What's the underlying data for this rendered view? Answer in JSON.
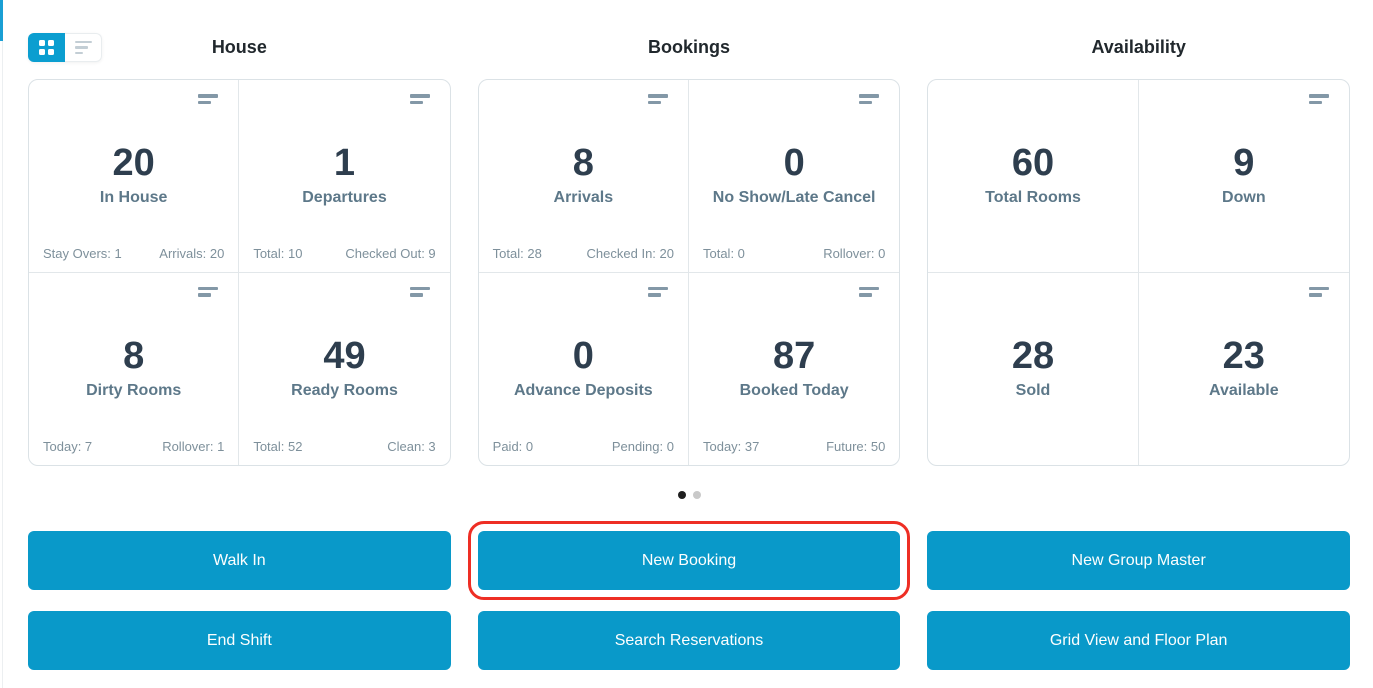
{
  "colors": {
    "accent": "#0999c9",
    "annotation_highlight": "#ee2e24"
  },
  "view_toggle": {
    "active": "grid",
    "options": [
      "grid-view",
      "list-view"
    ]
  },
  "sections": [
    {
      "title": "House",
      "cards": [
        {
          "value": "20",
          "label": "In House",
          "stat_left": "Stay Overs: 1",
          "stat_right": "Arrivals: 20"
        },
        {
          "value": "1",
          "label": "Departures",
          "stat_left": "Total: 10",
          "stat_right": "Checked Out: 9"
        },
        {
          "value": "8",
          "label": "Dirty Rooms",
          "stat_left": "Today: 7",
          "stat_right": "Rollover: 1"
        },
        {
          "value": "49",
          "label": "Ready Rooms",
          "stat_left": "Total: 52",
          "stat_right": "Clean: 3"
        }
      ]
    },
    {
      "title": "Bookings",
      "cards": [
        {
          "value": "8",
          "label": "Arrivals",
          "stat_left": "Total: 28",
          "stat_right": "Checked In: 20"
        },
        {
          "value": "0",
          "label": "No Show/Late Cancel",
          "stat_left": "Total: 0",
          "stat_right": "Rollover: 0"
        },
        {
          "value": "0",
          "label": "Advance Deposits",
          "stat_left": "Paid: 0",
          "stat_right": "Pending: 0"
        },
        {
          "value": "87",
          "label": "Booked Today",
          "stat_left": "Today: 37",
          "stat_right": "Future: 50"
        }
      ]
    },
    {
      "title": "Availability",
      "cards": [
        {
          "value": "60",
          "label": "Total Rooms"
        },
        {
          "value": "9",
          "label": "Down"
        },
        {
          "value": "28",
          "label": "Sold"
        },
        {
          "value": "23",
          "label": "Available"
        }
      ]
    }
  ],
  "pagination": {
    "dot_count": 2,
    "active_index": 0
  },
  "actions": [
    {
      "label": "Walk In",
      "highlighted": false
    },
    {
      "label": "New Booking",
      "highlighted": true
    },
    {
      "label": "New Group Master",
      "highlighted": false
    },
    {
      "label": "End Shift",
      "highlighted": false
    },
    {
      "label": "Search Reservations",
      "highlighted": false
    },
    {
      "label": "Grid View and Floor Plan",
      "highlighted": false
    }
  ]
}
